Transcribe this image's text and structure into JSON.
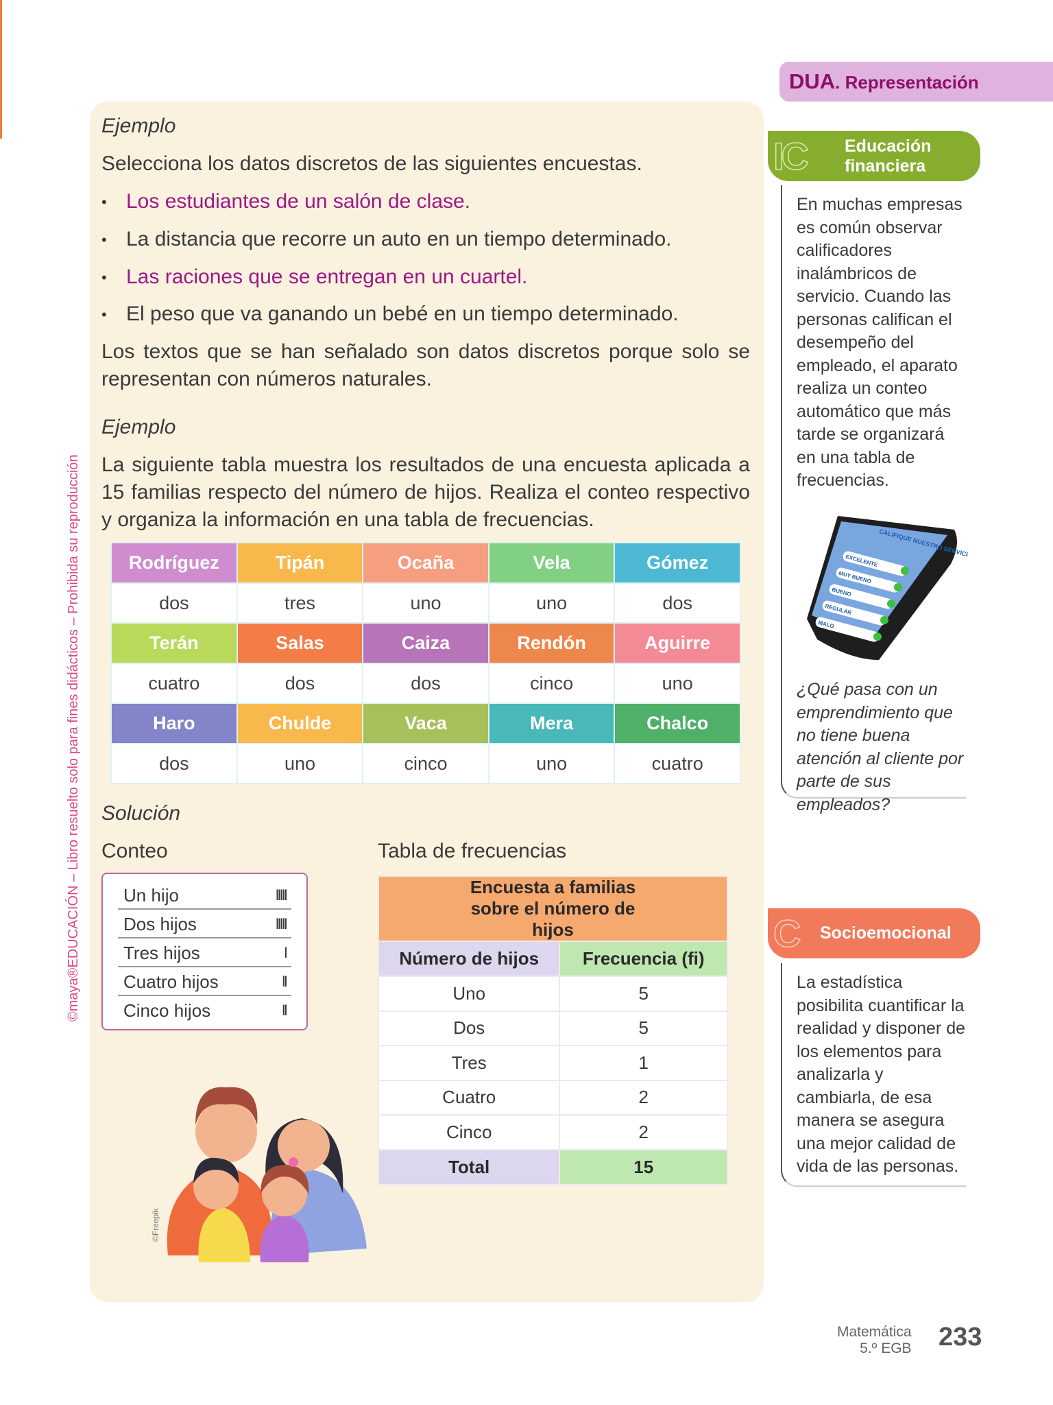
{
  "side_note": "©maya®EDUCACIÓN – Libro resuelto solo para fines didácticos – Prohibida su reproducción",
  "example1": {
    "title": "Ejemplo",
    "prompt": "Selecciona los datos discretos de las siguientes encuestas.",
    "bullets": [
      {
        "text": "Los estudiantes de un salón de clase.",
        "highlighted": true
      },
      {
        "text": "La distancia que recorre un auto en un tiempo determinado.",
        "highlighted": false
      },
      {
        "text": "Las raciones que se entregan en un cuartel.",
        "highlighted": true
      },
      {
        "text": "El peso que va ganando un bebé en un tiempo determinado.",
        "highlighted": false
      }
    ],
    "bullet_char": "•",
    "conclusion": "Los textos que se han señalado son datos discretos porque solo se representan con números naturales."
  },
  "example2": {
    "title": "Ejemplo",
    "text": "La siguiente tabla muestra los resultados de una encuesta aplicada a 15 familias respecto del número de hijos. Realiza el conteo respectivo y organiza la información en una tabla de frecuencias."
  },
  "survey": [
    [
      {
        "name": "Rodríguez",
        "value": "dos",
        "color": "#cf8dcf"
      },
      {
        "name": "Tipán",
        "value": "tres",
        "color": "#f9b84c"
      },
      {
        "name": "Ocaña",
        "value": "uno",
        "color": "#f59e80"
      },
      {
        "name": "Vela",
        "value": "uno",
        "color": "#82d083"
      },
      {
        "name": "Gómez",
        "value": "dos",
        "color": "#4cb8d4"
      }
    ],
    [
      {
        "name": "Terán",
        "value": "cuatro",
        "color": "#b8d95a"
      },
      {
        "name": "Salas",
        "value": "dos",
        "color": "#f47c46"
      },
      {
        "name": "Caiza",
        "value": "dos",
        "color": "#b874b8"
      },
      {
        "name": "Rendón",
        "value": "cinco",
        "color": "#ee874b"
      },
      {
        "name": "Aguirre",
        "value": "uno",
        "color": "#f48a96"
      }
    ],
    [
      {
        "name": "Haro",
        "value": "dos",
        "color": "#8484c8"
      },
      {
        "name": "Chulde",
        "value": "uno",
        "color": "#f9b84c"
      },
      {
        "name": "Vaca",
        "value": "cinco",
        "color": "#a8c05a"
      },
      {
        "name": "Mera",
        "value": "uno",
        "color": "#48b8b8"
      },
      {
        "name": "Chalco",
        "value": "cuatro",
        "color": "#4fb06a"
      }
    ]
  ],
  "solution": {
    "title": "Solución",
    "conteo_title": "Conteo",
    "freq_title": "Tabla de frecuencias",
    "conteo": [
      {
        "label": "Un hijo",
        "tally": "IIIII"
      },
      {
        "label": "Dos hijos",
        "tally": "IIIII"
      },
      {
        "label": "Tres hijos",
        "tally": "I"
      },
      {
        "label": "Cuatro hijos",
        "tally": "II"
      },
      {
        "label": "Cinco hijos",
        "tally": "II"
      }
    ],
    "table": {
      "caption": "Encuesta a familias sobre el número de hijos",
      "headers": [
        "Número de hijos",
        "Frecuencia (fi)"
      ],
      "rows": [
        [
          "Uno",
          "5"
        ],
        [
          "Dos",
          "5"
        ],
        [
          "Tres",
          "1"
        ],
        [
          "Cuatro",
          "2"
        ],
        [
          "Cinco",
          "2"
        ]
      ],
      "total": [
        "Total",
        "15"
      ]
    },
    "credit": "©Freepik"
  },
  "dua": {
    "prefix": "DUA",
    "label": ". Representación"
  },
  "financial": {
    "title": "Educación financiera",
    "text": "En muchas empresas es común observar calificadores inalámbricos de servicio. Cuando las personas califican el desempeño del empleado, el aparato realiza un conteo automático que más tarde se organizará en una tabla de frecuencias.",
    "device": {
      "header": "CALIFIQUE NUESTRO SERVICIO",
      "options": [
        "EXCELENTE",
        "MUY BUENO",
        "BUENO",
        "REGULAR",
        "MALO"
      ]
    },
    "question": "¿Qué pasa con un emprendimiento que no tiene buena atención al cliente por parte de sus empleados?"
  },
  "socio": {
    "title": "Socioemocional",
    "text": "La estadística posibilita cuantificar la realidad y disponer de los elementos para analizarla y cambiarla, de esa manera se asegura una mejor calidad de vida de las personas."
  },
  "footer": {
    "subject": "Matemática",
    "grade": "5.º EGB",
    "page": "233"
  },
  "colors": {
    "magenta": "#9a1a86",
    "panel": "#fbf1df",
    "green": "#86ad2e",
    "socio": "#f07a5a",
    "dua": "#dfb3de"
  }
}
